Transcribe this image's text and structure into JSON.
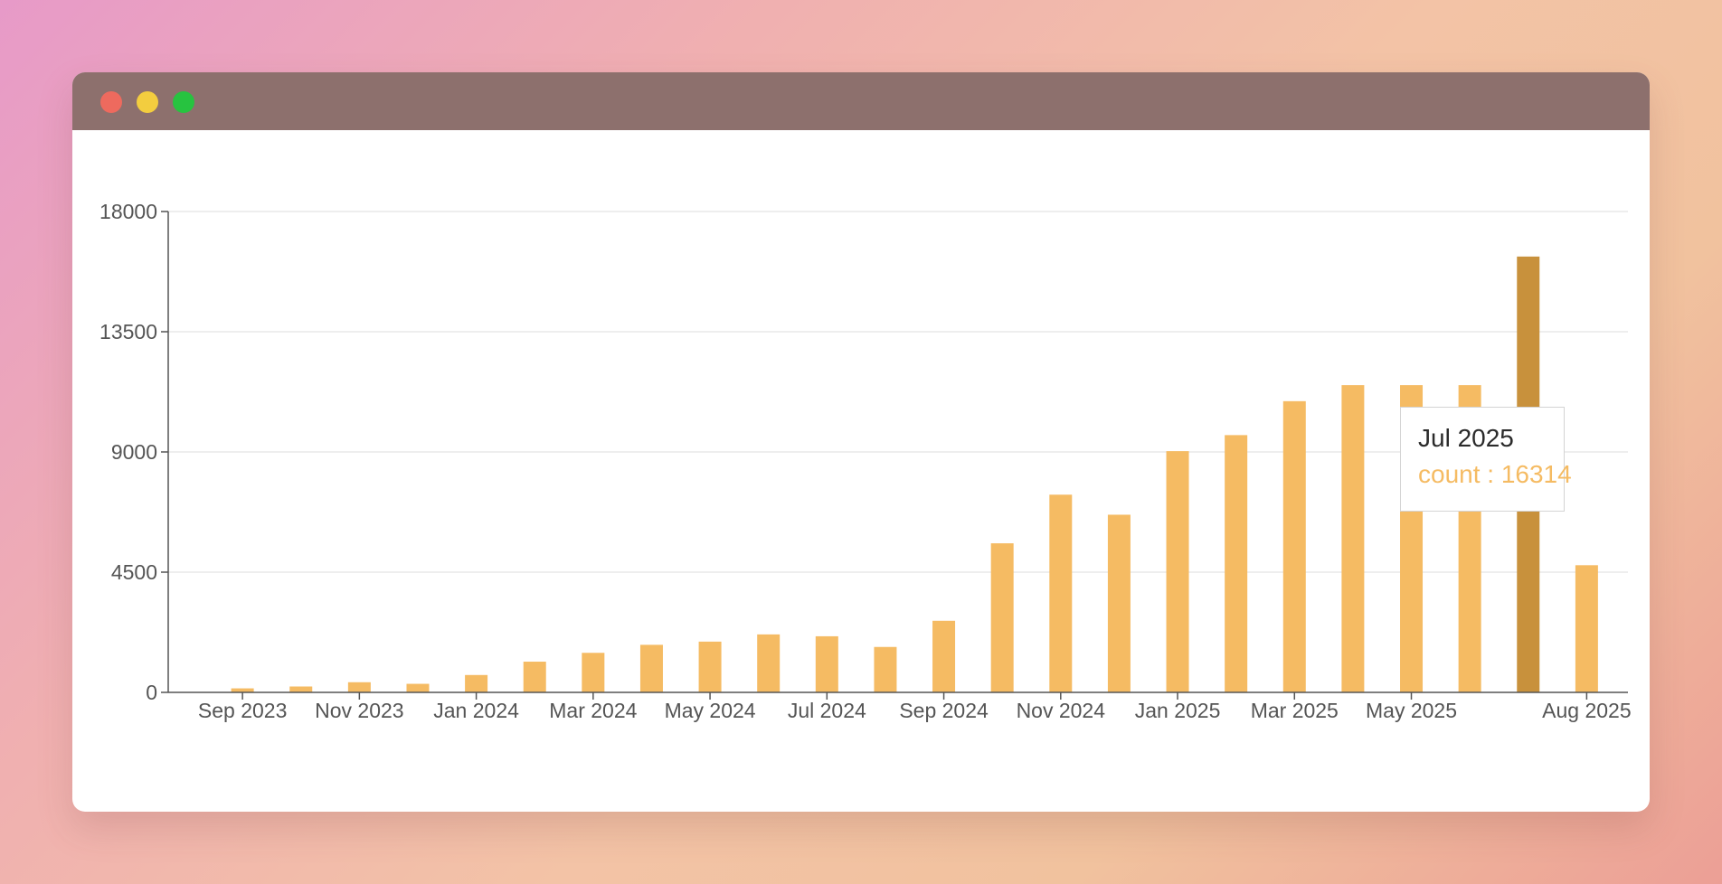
{
  "window": {
    "controls": [
      "close",
      "minimize",
      "zoom"
    ]
  },
  "colors": {
    "bar": "#f5bb63",
    "bar_active": "#c8913c",
    "axis": "#555555",
    "grid": "#e9e9e9",
    "tick_label": "#555555",
    "tooltip_value": "#f5bb63"
  },
  "tooltip": {
    "label": "Jul 2025",
    "series_name": "count",
    "separator": " : ",
    "value": 16314
  },
  "chart_data": {
    "type": "bar",
    "categories": [
      "Aug 2023",
      "Sep 2023",
      "Oct 2023",
      "Nov 2023",
      "Dec 2023",
      "Jan 2024",
      "Feb 2024",
      "Mar 2024",
      "Apr 2024",
      "May 2024",
      "Jun 2024",
      "Jul 2024",
      "Aug 2024",
      "Sep 2024",
      "Oct 2024",
      "Nov 2024",
      "Dec 2024",
      "Jan 2025",
      "Feb 2025",
      "Mar 2025",
      "Apr 2025",
      "May 2025",
      "Jun 2025",
      "Jul 2025",
      "Aug 2025"
    ],
    "series": [
      {
        "name": "count",
        "values": [
          0,
          150,
          220,
          380,
          320,
          650,
          1150,
          1480,
          1780,
          1900,
          2170,
          2100,
          1700,
          2680,
          5580,
          7400,
          6650,
          9030,
          9630,
          10900,
          11500,
          11500,
          11500,
          16314,
          4760
        ]
      }
    ],
    "x_tick_labels": [
      "Sep 2023",
      "Nov 2023",
      "Jan 2024",
      "Mar 2024",
      "May 2024",
      "Jul 2024",
      "Sep 2024",
      "Nov 2024",
      "Jan 2025",
      "Mar 2025",
      "May 2025",
      "Aug 2025"
    ],
    "y_ticks": [
      0,
      4500,
      9000,
      13500,
      18000
    ],
    "ylim": [
      0,
      18000
    ],
    "highlighted_category": "Jul 2025",
    "grid": "horizontal",
    "xlabel": "",
    "ylabel": ""
  }
}
